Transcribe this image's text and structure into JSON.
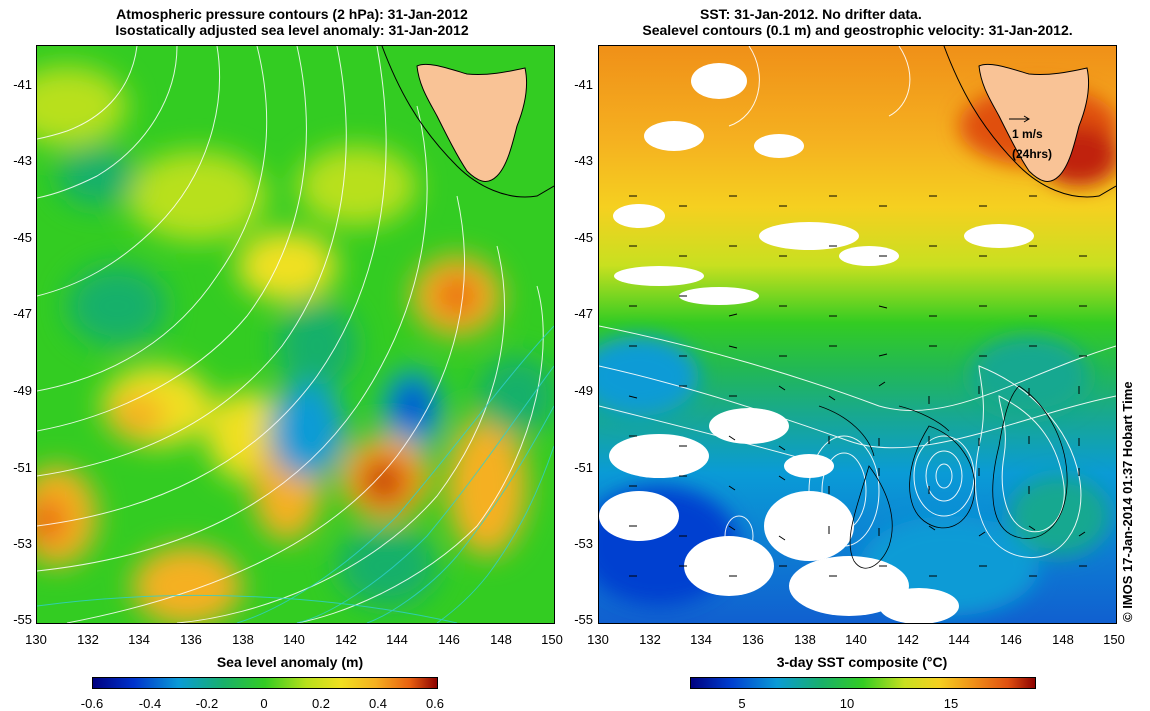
{
  "left_panel": {
    "title_line1": "Atmospheric pressure contours (2 hPa): 31-Jan-2012",
    "title_line2": "Isostatically adjusted sea level anomaly: 31-Jan-2012",
    "y_ticks": [
      "-41",
      "-43",
      "-45",
      "-47",
      "-49",
      "-51",
      "-53",
      "-55"
    ],
    "x_ticks": [
      "130",
      "132",
      "134",
      "136",
      "138",
      "140",
      "142",
      "144",
      "146",
      "148",
      "150"
    ],
    "colorbar_label": "Sea level anomaly (m)",
    "colorbar_ticks": [
      "-0.6",
      "-0.4",
      "-0.2",
      "0",
      "0.2",
      "0.4",
      "0.6"
    ]
  },
  "right_panel": {
    "title_line1": "SST: 31-Jan-2012. No drifter data.",
    "title_line2": "Sealevel contours (0.1 m) and geostrophic velocity: 31-Jan-2012.",
    "y_ticks": [
      "-41",
      "-43",
      "-45",
      "-47",
      "-49",
      "-51",
      "-53",
      "-55"
    ],
    "x_ticks": [
      "130",
      "132",
      "134",
      "136",
      "138",
      "140",
      "142",
      "144",
      "146",
      "148",
      "150"
    ],
    "scale_label_1": "1 m/s",
    "scale_label_2": "(24hrs)",
    "colorbar_label": "3-day SST composite (°C)",
    "colorbar_ticks": [
      "5",
      "10",
      "15"
    ]
  },
  "credit": "© IMOS 17-Jan-2014 01:37 Hobart Time",
  "colors": {
    "land": "#f9c396",
    "sla_scale": [
      "#00007f",
      "#0033cc",
      "#0a9bd6",
      "#18b06a",
      "#33cc22",
      "#b8e01b",
      "#f0e020",
      "#f5b020",
      "#e86010",
      "#8b0000"
    ],
    "sst_scale": [
      "#00007f",
      "#0040d0",
      "#0a9bd6",
      "#18b06a",
      "#33cc22",
      "#c8e020",
      "#f5d020",
      "#f09018",
      "#e05010",
      "#8b0000"
    ]
  }
}
